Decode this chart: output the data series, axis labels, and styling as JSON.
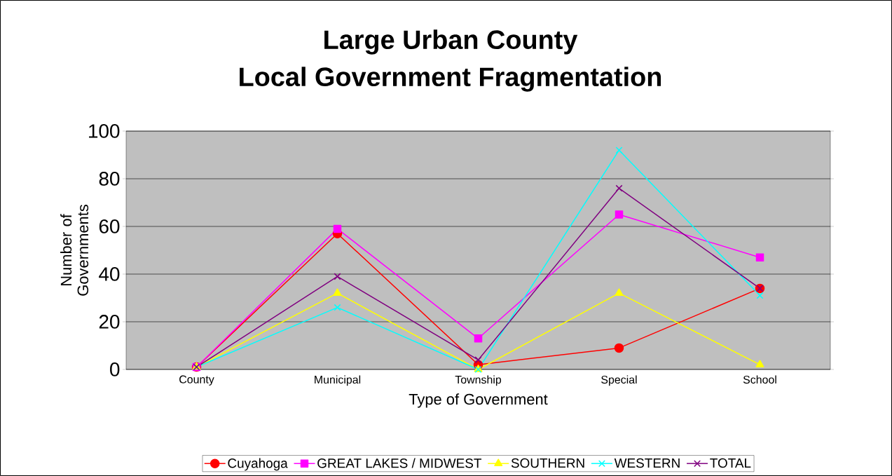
{
  "chart_data": {
    "type": "line",
    "title": "Large Urban County",
    "subtitle": "Local Government Fragmentation",
    "xlabel": "Type of Government",
    "ylabel": "Number of Governments",
    "categories": [
      "County",
      "Municipal",
      "Township",
      "Special",
      "School"
    ],
    "series": [
      {
        "name": "Cuyahoga",
        "color": "#ff0000",
        "marker": "circle",
        "values": [
          1,
          57,
          2,
          9,
          34
        ]
      },
      {
        "name": "GREAT LAKES / MIDWEST",
        "color": "#ff00ff",
        "marker": "square",
        "values": [
          1,
          59,
          13,
          65,
          47
        ]
      },
      {
        "name": "SOUTHERN",
        "color": "#ffff00",
        "marker": "triangle",
        "values": [
          1,
          32,
          0,
          32,
          2
        ]
      },
      {
        "name": "WESTERN",
        "color": "#00ffff",
        "marker": "cross",
        "values": [
          1,
          26,
          0,
          92,
          31
        ]
      },
      {
        "name": "TOTAL",
        "color": "#800080",
        "marker": "cross",
        "values": [
          1,
          39,
          4,
          76,
          34
        ]
      }
    ],
    "ylim": [
      0,
      100
    ],
    "yticks": [
      0,
      20,
      40,
      60,
      80,
      100
    ],
    "grid": "y",
    "legend": "bottom"
  }
}
